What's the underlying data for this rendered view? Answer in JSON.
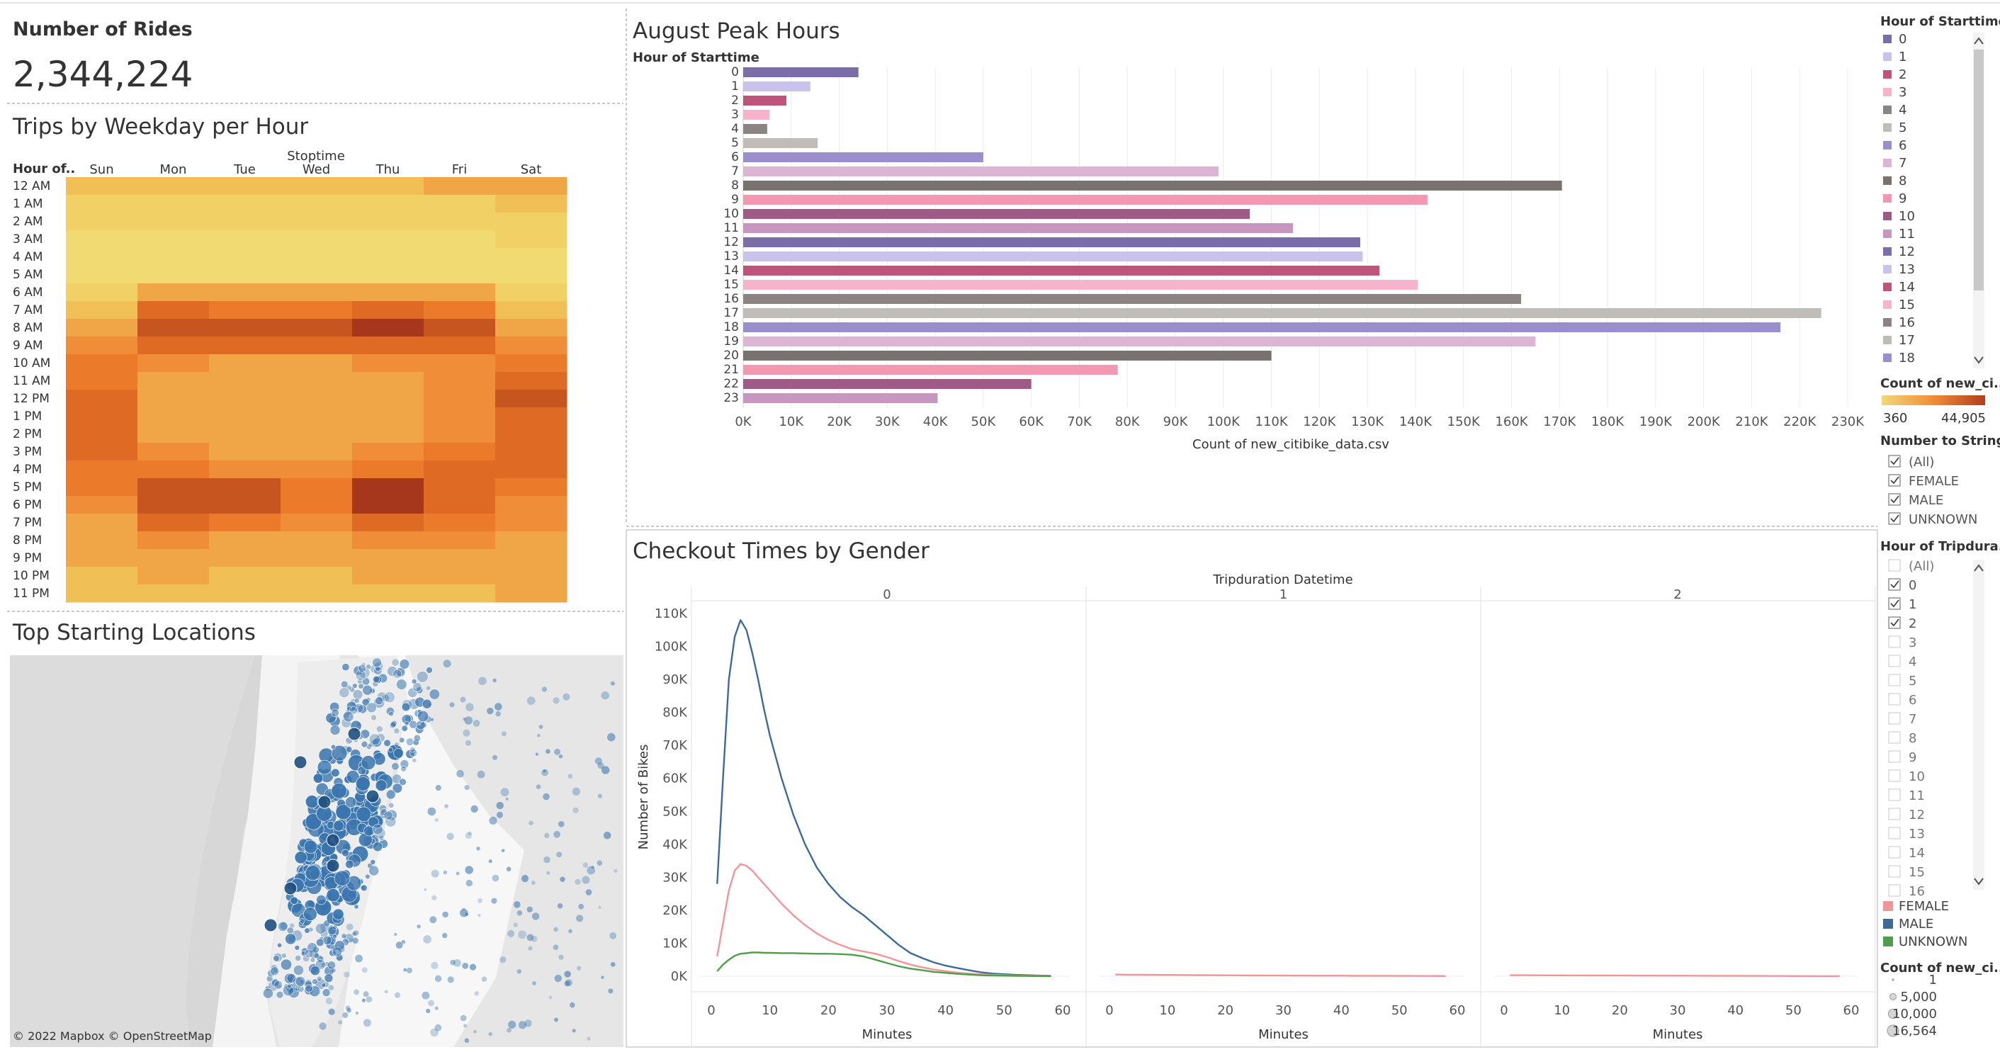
{
  "kpi": {
    "title": "Number of Rides",
    "value": "2,344,224"
  },
  "heatmap": {
    "title": "Trips by Weekday per Hour",
    "column_header": "Stoptime",
    "row_header": "Hour of..",
    "days": [
      "Sun",
      "Mon",
      "Tue",
      "Wed",
      "Thu",
      "Fri",
      "Sat"
    ],
    "hours": [
      "12 AM",
      "1 AM",
      "2 AM",
      "3 AM",
      "4 AM",
      "5 AM",
      "6 AM",
      "7 AM",
      "8 AM",
      "9 AM",
      "10 AM",
      "11 AM",
      "12 PM",
      "1 PM",
      "2 PM",
      "3 PM",
      "4 PM",
      "5 PM",
      "6 PM",
      "7 PM",
      "8 PM",
      "9 PM",
      "10 PM",
      "11 PM"
    ],
    "colors": [
      "#f1da72",
      "#f1d065",
      "#f0bf55",
      "#f0a647",
      "#ef8d38",
      "#ec7a2b",
      "#df6a24",
      "#c7551f",
      "#a6371c"
    ]
  },
  "map": {
    "title": "Top Starting Locations",
    "attribution": "© 2022 Mapbox © OpenStreetMap",
    "point_color": "#3a75ae"
  },
  "peak": {
    "title": "August Peak Hours",
    "ylabel": "Hour of Starttime",
    "xlabel": "Count of new_citibike_data.csv",
    "tick_labels": [
      "0K",
      "10K",
      "20K",
      "30K",
      "40K",
      "50K",
      "60K",
      "70K",
      "80K",
      "90K",
      "100K",
      "110K",
      "120K",
      "130K",
      "140K",
      "150K",
      "160K",
      "170K",
      "180K",
      "190K",
      "200K",
      "210K",
      "220K",
      "230K"
    ],
    "bar_colors": [
      "#7b6ea8",
      "#c9c2ea",
      "#c0537a",
      "#f6b3cb",
      "#8a8583",
      "#c0bdb9",
      "#9a8fcc",
      "#dcb4d6",
      "#7a7270",
      "#f498b2",
      "#a05a88",
      "#c897c0",
      "#7b6ea8",
      "#c9c2ea",
      "#c0537a",
      "#f6b3cb",
      "#8a8583",
      "#c0bdb9",
      "#9a8fcc",
      "#dcb4d6",
      "#7a7270",
      "#f498b2",
      "#a05a88",
      "#c897c0"
    ]
  },
  "checkout": {
    "title": "Checkout Times by Gender",
    "column_header": "Tripduration Datetime",
    "facets": [
      "0",
      "1",
      "2"
    ],
    "ylabel": "Number of Bikes",
    "xlabel": "Minutes",
    "y_ticks": [
      "110K",
      "100K",
      "90K",
      "80K",
      "70K",
      "60K",
      "50K",
      "40K",
      "30K",
      "20K",
      "10K",
      "0K"
    ],
    "x_ticks": [
      "0",
      "10",
      "20",
      "30",
      "40",
      "50",
      "60"
    ],
    "series_colors": {
      "FEMALE": "#f09599",
      "MALE": "#3d6b96",
      "UNKNOWN": "#4f9e49"
    }
  },
  "legend": {
    "hour_title": "Hour of Starttime",
    "hour_items": [
      "0",
      "1",
      "2",
      "3",
      "4",
      "5",
      "6",
      "7",
      "8",
      "9",
      "10",
      "11",
      "12",
      "13",
      "14",
      "15",
      "16",
      "17",
      "18"
    ],
    "count_title": "Count of new_ci..",
    "count_min": "360",
    "count_max": "44,905",
    "gender_filter_title": "Number to String",
    "gender_filter_items": [
      "(All)",
      "FEMALE",
      "MALE",
      "UNKNOWN"
    ],
    "trip_filter_title": "Hour of Tripdura..",
    "trip_filter_items": [
      "(All)",
      "0",
      "1",
      "2",
      "3",
      "4",
      "5",
      "6",
      "7",
      "8",
      "9",
      "10",
      "11",
      "12",
      "13",
      "14",
      "15",
      "16"
    ],
    "trip_filter_checked": [
      false,
      true,
      true,
      true,
      false,
      false,
      false,
      false,
      false,
      false,
      false,
      false,
      false,
      false,
      false,
      false,
      false,
      false
    ],
    "gender_items": [
      "FEMALE",
      "MALE",
      "UNKNOWN"
    ],
    "size_title": "Count of new_ci..",
    "size_items": [
      "1",
      "5,000",
      "10,000",
      "16,564"
    ]
  },
  "chart_data": [
    {
      "type": "heatmap",
      "title": "Trips by Weekday per Hour",
      "xlabel": "Stoptime",
      "ylabel": "Hour of..",
      "x": [
        "Sun",
        "Mon",
        "Tue",
        "Wed",
        "Thu",
        "Fri",
        "Sat"
      ],
      "y": [
        "12 AM",
        "1 AM",
        "2 AM",
        "3 AM",
        "4 AM",
        "5 AM",
        "6 AM",
        "7 AM",
        "8 AM",
        "9 AM",
        "10 AM",
        "11 AM",
        "12 PM",
        "1 PM",
        "2 PM",
        "3 PM",
        "4 PM",
        "5 PM",
        "6 PM",
        "7 PM",
        "8 PM",
        "9 PM",
        "10 PM",
        "11 PM"
      ],
      "values": [
        [
          2,
          2,
          2,
          2,
          2,
          3,
          3
        ],
        [
          1,
          1,
          1,
          1,
          1,
          1,
          2
        ],
        [
          1,
          1,
          1,
          1,
          1,
          1,
          1
        ],
        [
          0,
          0,
          0,
          0,
          0,
          0,
          1
        ],
        [
          0,
          0,
          0,
          0,
          0,
          0,
          0
        ],
        [
          0,
          0,
          0,
          0,
          0,
          0,
          0
        ],
        [
          1,
          3,
          3,
          3,
          3,
          3,
          1
        ],
        [
          2,
          6,
          5,
          5,
          6,
          5,
          2
        ],
        [
          3,
          7,
          7,
          7,
          8,
          7,
          3
        ],
        [
          4,
          6,
          6,
          6,
          6,
          6,
          4
        ],
        [
          5,
          4,
          3,
          3,
          4,
          4,
          5
        ],
        [
          5,
          3,
          3,
          3,
          3,
          4,
          6
        ],
        [
          6,
          3,
          3,
          3,
          3,
          4,
          7
        ],
        [
          6,
          3,
          3,
          3,
          3,
          4,
          6
        ],
        [
          6,
          3,
          3,
          3,
          3,
          4,
          6
        ],
        [
          6,
          4,
          3,
          3,
          4,
          5,
          6
        ],
        [
          5,
          5,
          4,
          4,
          5,
          6,
          6
        ],
        [
          5,
          7,
          7,
          5,
          8,
          6,
          5
        ],
        [
          4,
          7,
          7,
          5,
          8,
          6,
          4
        ],
        [
          3,
          6,
          5,
          4,
          6,
          5,
          4
        ],
        [
          3,
          4,
          3,
          3,
          4,
          4,
          3
        ],
        [
          3,
          3,
          3,
          3,
          3,
          3,
          3
        ],
        [
          2,
          3,
          2,
          2,
          3,
          3,
          3
        ],
        [
          2,
          2,
          2,
          2,
          2,
          2,
          3
        ]
      ]
    },
    {
      "type": "bar",
      "title": "August Peak Hours",
      "orientation": "horizontal",
      "categories": [
        "0",
        "1",
        "2",
        "3",
        "4",
        "5",
        "6",
        "7",
        "8",
        "9",
        "10",
        "11",
        "12",
        "13",
        "14",
        "15",
        "16",
        "17",
        "18",
        "19",
        "20",
        "21",
        "22",
        "23"
      ],
      "values": [
        24000,
        14000,
        9000,
        5500,
        5000,
        15500,
        50000,
        99000,
        170500,
        142500,
        105500,
        114500,
        128500,
        129000,
        132500,
        140500,
        162000,
        224500,
        216000,
        165000,
        110000,
        78000,
        60000,
        40500
      ],
      "xlabel": "Count of new_citibike_data.csv",
      "ylabel": "Hour of Starttime",
      "xlim": [
        0,
        230000
      ]
    },
    {
      "type": "line",
      "title": "Checkout Times by Gender",
      "xlabel": "Minutes",
      "ylabel": "Number of Bikes",
      "ylim": [
        0,
        110000
      ],
      "xlim": [
        0,
        60
      ],
      "facets": [
        "0",
        "1",
        "2"
      ],
      "x": [
        1,
        2,
        3,
        4,
        5,
        6,
        7,
        8,
        9,
        10,
        12,
        14,
        16,
        18,
        20,
        22,
        24,
        26,
        28,
        30,
        32,
        34,
        36,
        38,
        40,
        42,
        44,
        46,
        48,
        50,
        52,
        54,
        56,
        58
      ],
      "series": [
        {
          "name": "MALE",
          "facet": "0",
          "values": [
            28000,
            60000,
            90000,
            103000,
            108000,
            105000,
            98000,
            90000,
            81000,
            73000,
            60000,
            49000,
            40000,
            33000,
            28000,
            24000,
            21000,
            18500,
            15500,
            12500,
            9500,
            7000,
            5500,
            4200,
            3200,
            2500,
            1800,
            1200,
            800,
            600,
            400,
            300,
            200,
            100
          ]
        },
        {
          "name": "FEMALE",
          "facet": "0",
          "values": [
            6000,
            16000,
            26000,
            32000,
            34000,
            33500,
            32000,
            30000,
            28000,
            26000,
            22000,
            18500,
            15500,
            13000,
            11000,
            9500,
            8200,
            7500,
            6800,
            5800,
            4600,
            3500,
            2700,
            2000,
            1500,
            1100,
            800,
            600,
            400,
            300,
            200,
            150,
            100,
            50
          ]
        },
        {
          "name": "UNKNOWN",
          "facet": "0",
          "values": [
            1500,
            3500,
            5000,
            6200,
            6800,
            7000,
            7200,
            7200,
            7100,
            7100,
            7000,
            7000,
            6900,
            6800,
            6800,
            6700,
            6500,
            6000,
            5000,
            4000,
            3000,
            2300,
            1800,
            1300,
            1000,
            700,
            500,
            300,
            200,
            150,
            100,
            60,
            30,
            10
          ]
        },
        {
          "name": "FEMALE",
          "facet": "1",
          "values": [
            500,
            500,
            450,
            450,
            450,
            420,
            400,
            400,
            380,
            380,
            360,
            340,
            320,
            300,
            280,
            260,
            240,
            220,
            200,
            190,
            180,
            170,
            160,
            150,
            140,
            130,
            120,
            110,
            100,
            90,
            80,
            70,
            60,
            50
          ]
        },
        {
          "name": "FEMALE",
          "facet": "2",
          "values": [
            300,
            300,
            300,
            300,
            280,
            280,
            260,
            260,
            250,
            250,
            240,
            230,
            220,
            210,
            200,
            190,
            180,
            170,
            160,
            150,
            140,
            130,
            120,
            110,
            100,
            90,
            80,
            70,
            60,
            50,
            40,
            30,
            20,
            10
          ]
        }
      ]
    }
  ]
}
